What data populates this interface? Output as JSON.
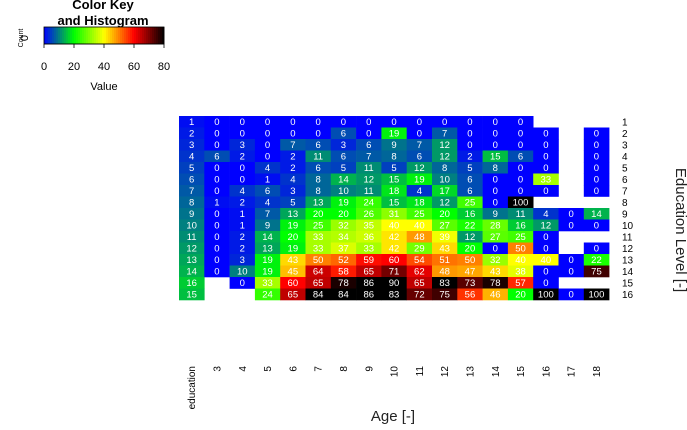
{
  "color_key": {
    "title_line1": "Color Key",
    "title_line2": "and Histogram",
    "count_label": "Count",
    "count_zero": "0",
    "axis_label": "Value",
    "ticks": [
      "0",
      "20",
      "40",
      "60",
      "80"
    ],
    "range": [
      0,
      80
    ]
  },
  "chart_data": {
    "type": "heatmap",
    "xlabel": "Age [-]",
    "ylabel": "Education Level [-]",
    "color_scale": [
      "#0000ff",
      "#00ff00",
      "#ffff00",
      "#ff0000",
      "#000000"
    ],
    "columns": [
      "education",
      "3",
      "4",
      "5",
      "6",
      "7",
      "8",
      "9",
      "10",
      "11",
      "12",
      "13",
      "14",
      "15",
      "16",
      "17",
      "18"
    ],
    "rows": [
      "1",
      "2",
      "3",
      "4",
      "5",
      "6",
      "7",
      "8",
      "9",
      "10",
      "11",
      "12",
      "13",
      "14",
      "15",
      "16"
    ],
    "values": [
      [
        "1",
        "0",
        "0",
        "0",
        "0",
        "0",
        "0",
        "0",
        "0",
        "0",
        "0",
        "0",
        "0",
        "0",
        "",
        "",
        ""
      ],
      [
        "2",
        "0",
        "0",
        "0",
        "0",
        "0",
        "6",
        "0",
        "19",
        "0",
        "7",
        "0",
        "0",
        "0",
        "0",
        "",
        "0"
      ],
      [
        "3",
        "0",
        "3",
        "0",
        "7",
        "6",
        "3",
        "6",
        "9",
        "7",
        "12",
        "0",
        "0",
        "0",
        "0",
        "",
        "0"
      ],
      [
        "4",
        "6",
        "2",
        "0",
        "2",
        "11",
        "6",
        "7",
        "8",
        "6",
        "12",
        "2",
        "15",
        "6",
        "0",
        "",
        "0"
      ],
      [
        "5",
        "0",
        "0",
        "4",
        "2",
        "6",
        "5",
        "11",
        "5",
        "12",
        "8",
        "5",
        "8",
        "0",
        "0",
        "",
        "0"
      ],
      [
        "6",
        "0",
        "0",
        "1",
        "4",
        "8",
        "14",
        "12",
        "15",
        "19",
        "10",
        "6",
        "0",
        "0",
        "33",
        "",
        "0"
      ],
      [
        "7",
        "0",
        "4",
        "6",
        "3",
        "8",
        "10",
        "11",
        "18",
        "4",
        "17",
        "6",
        "0",
        "0",
        "0",
        "",
        "0"
      ],
      [
        "8",
        "1",
        "2",
        "4",
        "5",
        "13",
        "19",
        "24",
        "15",
        "18",
        "12",
        "25",
        "0",
        "100",
        "",
        "",
        ""
      ],
      [
        "9",
        "0",
        "1",
        "7",
        "13",
        "20",
        "20",
        "26",
        "31",
        "25",
        "20",
        "16",
        "9",
        "11",
        "4",
        "0",
        "14"
      ],
      [
        "10",
        "0",
        "1",
        "9",
        "19",
        "25",
        "32",
        "35",
        "40",
        "40",
        "27",
        "22",
        "28",
        "16",
        "12",
        "0",
        "0"
      ],
      [
        "11",
        "0",
        "2",
        "14",
        "20",
        "33",
        "34",
        "36",
        "42",
        "48",
        "39",
        "12",
        "27",
        "25",
        "0",
        "",
        ""
      ],
      [
        "12",
        "0",
        "2",
        "13",
        "19",
        "33",
        "37",
        "33",
        "42",
        "29",
        "43",
        "20",
        "0",
        "50",
        "0",
        "",
        "0"
      ],
      [
        "13",
        "0",
        "3",
        "19",
        "43",
        "50",
        "52",
        "59",
        "60",
        "54",
        "51",
        "50",
        "32",
        "40",
        "40",
        "0",
        "22"
      ],
      [
        "14",
        "0",
        "10",
        "19",
        "45",
        "64",
        "58",
        "65",
        "71",
        "62",
        "48",
        "47",
        "43",
        "38",
        "0",
        "0",
        "75"
      ],
      [
        "16",
        "",
        "0",
        "33",
        "60",
        "65",
        "78",
        "86",
        "90",
        "65",
        "83",
        "73",
        "78",
        "57",
        "0",
        "",
        ""
      ],
      [
        "15",
        "",
        "",
        "24",
        "65",
        "84",
        "84",
        "86",
        "83",
        "72",
        "75",
        "56",
        "46",
        "20",
        "100",
        "0",
        "100"
      ]
    ]
  }
}
